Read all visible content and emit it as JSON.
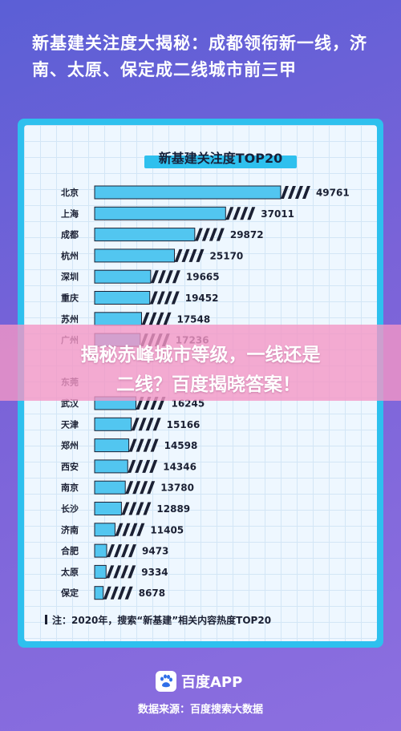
{
  "headline": "新基建关注度大揭秘：成都领衔新一线，济南、太原、保定成二线城市前三甲",
  "footnote": "注：2020年，搜索“新基建”相关内容热度TOP20",
  "overlay": {
    "line1": "揭秘赤峰城市等级，一线还是",
    "line2": "二线？百度揭晓答案！"
  },
  "app_name": "百度APP",
  "source": "数据来源：百度搜索大数据",
  "colors": {
    "bar": "#52c6f0",
    "bar_dark": "#1b2033",
    "card_border": "#2ec0ee"
  },
  "chart_data": {
    "type": "bar",
    "orientation": "horizontal",
    "title": "新基建关注度TOP20",
    "categories": [
      "北京",
      "上海",
      "成都",
      "杭州",
      "深圳",
      "重庆",
      "苏州",
      "广州",
      "",
      "东莞",
      "武汉",
      "天津",
      "郑州",
      "西安",
      "南京",
      "长沙",
      "济南",
      "合肥",
      "太原",
      "保定"
    ],
    "values": [
      49761,
      37011,
      29872,
      25170,
      19665,
      19452,
      17548,
      17236,
      null,
      null,
      16245,
      15166,
      14598,
      14346,
      13780,
      12889,
      11405,
      9473,
      9334,
      8678
    ],
    "value_labels": [
      "49761",
      "37011",
      "29872",
      "25170",
      "19665",
      "19452",
      "17548",
      "17236",
      "",
      "",
      "16245",
      "15166",
      "14598",
      "14346",
      "13780",
      "12889",
      "11405",
      "9473",
      "9334",
      "8678"
    ],
    "xlim": [
      0,
      52000
    ],
    "grid": true,
    "legend": "none"
  }
}
